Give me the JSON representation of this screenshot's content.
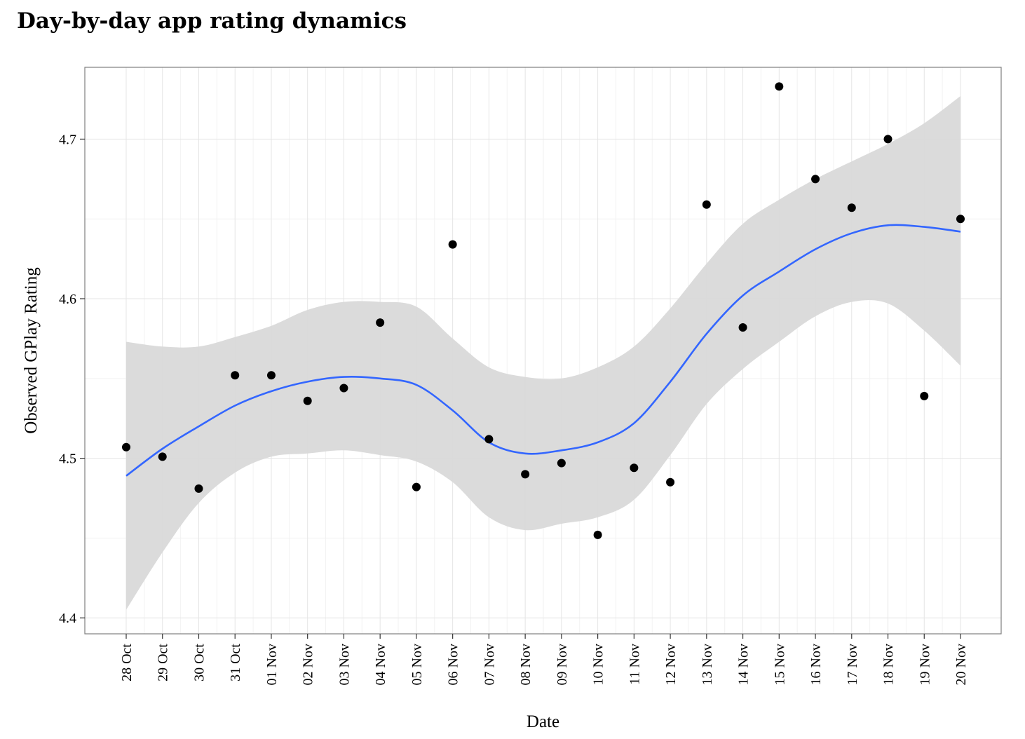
{
  "chart_data": {
    "type": "scatter",
    "title": "Day-by-day app rating dynamics",
    "xlabel": "Date",
    "ylabel": "Observed GPlay Rating",
    "ylim": [
      4.39,
      4.745
    ],
    "yticks": [
      4.4,
      4.5,
      4.6,
      4.7
    ],
    "grid": true,
    "categories": [
      "28 Oct",
      "29 Oct",
      "30 Oct",
      "31 Oct",
      "01 Nov",
      "02 Nov",
      "03 Nov",
      "04 Nov",
      "05 Nov",
      "06 Nov",
      "07 Nov",
      "08 Nov",
      "09 Nov",
      "10 Nov",
      "11 Nov",
      "12 Nov",
      "13 Nov",
      "14 Nov",
      "15 Nov",
      "16 Nov",
      "17 Nov",
      "18 Nov",
      "19 Nov",
      "20 Nov"
    ],
    "series": [
      {
        "kind": "points",
        "values": [
          4.507,
          4.501,
          4.481,
          4.552,
          4.552,
          4.536,
          4.544,
          4.585,
          4.482,
          4.634,
          4.512,
          4.49,
          4.497,
          4.452,
          4.494,
          4.485,
          4.659,
          4.582,
          4.733,
          4.675,
          4.657,
          4.7,
          4.539,
          4.65
        ],
        "color": "#000000"
      },
      {
        "kind": "smooth",
        "values": [
          4.489,
          4.506,
          4.52,
          4.533,
          4.542,
          4.548,
          4.551,
          4.55,
          4.546,
          4.53,
          4.51,
          4.503,
          4.505,
          4.51,
          4.522,
          4.548,
          4.578,
          4.602,
          4.617,
          4.631,
          4.641,
          4.646,
          4.645,
          4.642
        ],
        "ci_upper": [
          4.573,
          4.57,
          4.57,
          4.576,
          4.583,
          4.593,
          4.598,
          4.598,
          4.595,
          4.575,
          4.557,
          4.551,
          4.55,
          4.557,
          4.57,
          4.594,
          4.622,
          4.647,
          4.662,
          4.675,
          4.686,
          4.697,
          4.71,
          4.727
        ],
        "ci_lower": [
          4.405,
          4.441,
          4.472,
          4.491,
          4.501,
          4.503,
          4.505,
          4.502,
          4.498,
          4.485,
          4.463,
          4.455,
          4.459,
          4.463,
          4.474,
          4.502,
          4.534,
          4.556,
          4.573,
          4.589,
          4.598,
          4.597,
          4.58,
          4.558
        ],
        "color": "#3366FF",
        "ci_color": "#d9d9d9"
      }
    ]
  }
}
